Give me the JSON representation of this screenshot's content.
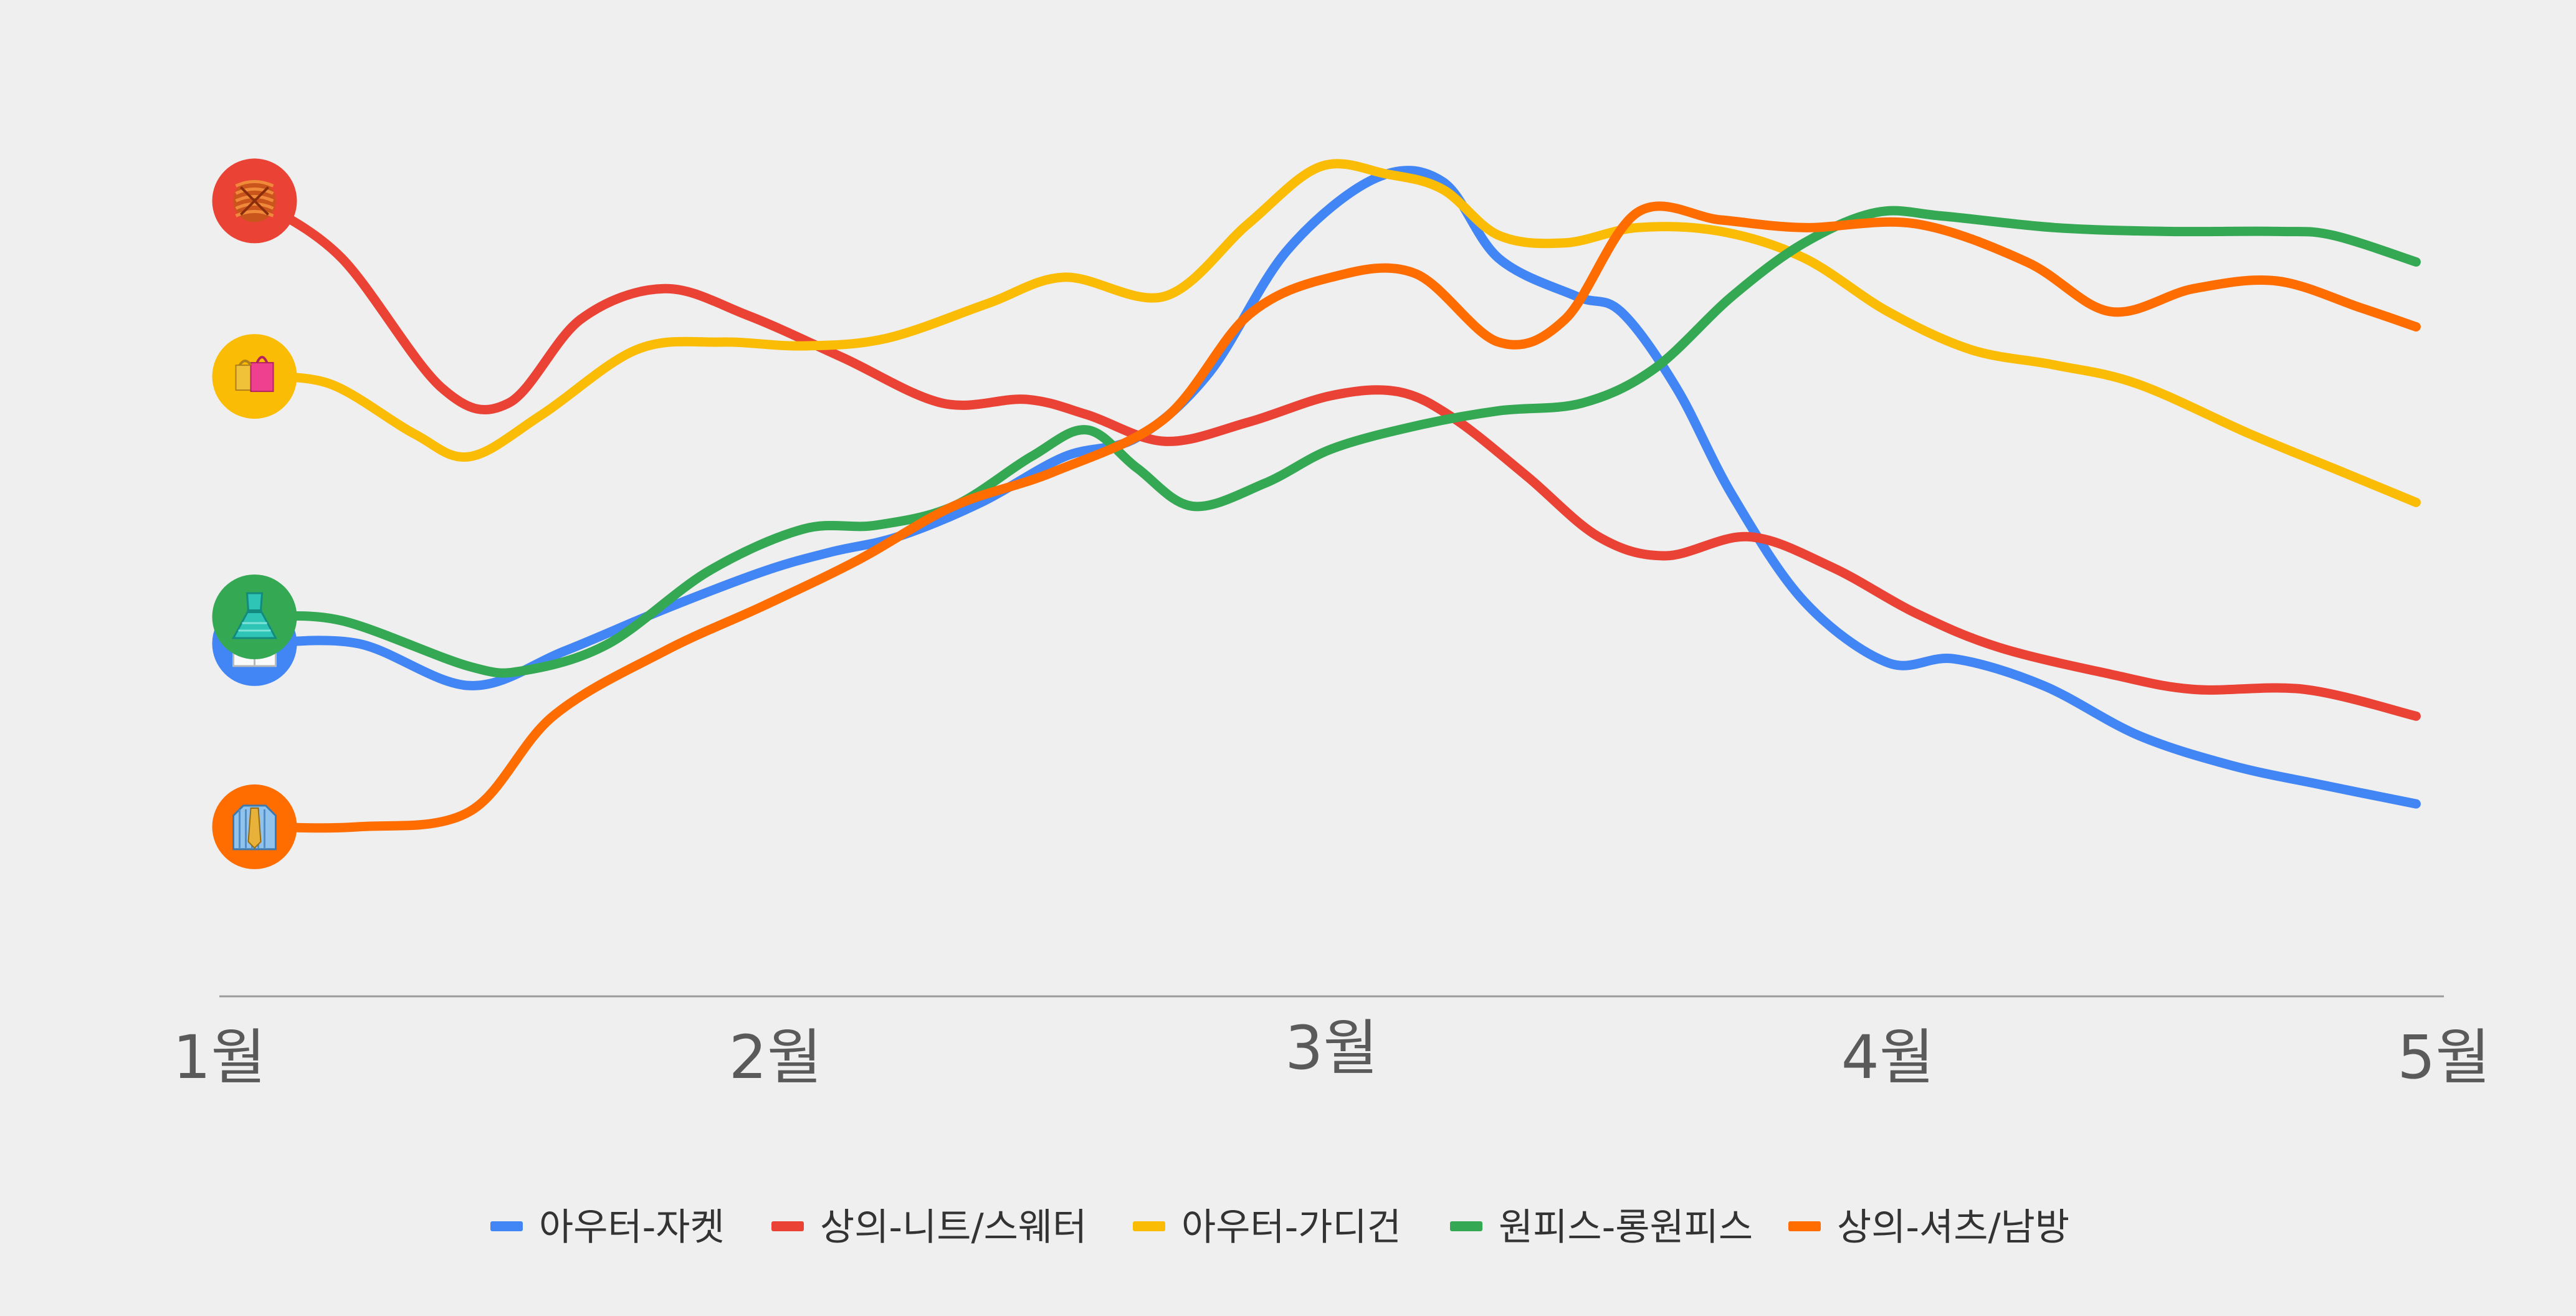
{
  "chart_data": {
    "type": "line",
    "title": "",
    "xlabel": "",
    "ylabel": "",
    "categories": [
      "1월",
      "2월",
      "3월",
      "4월",
      "5월"
    ],
    "grid": false,
    "y_axis_visible": false,
    "legend_position": "bottom-center",
    "ylim": [
      0,
      100
    ],
    "x_ticks": [
      0,
      1,
      2,
      3,
      4
    ],
    "series": [
      {
        "name": "아우터-자켓",
        "color": "#4285F4",
        "icon": "lab-coat-icon",
        "x": [
          0.07,
          0.25,
          0.45,
          0.62,
          0.8,
          0.98,
          1.1,
          1.22,
          1.37,
          1.52,
          1.65,
          1.78,
          1.92,
          2.08,
          2.2,
          2.3,
          2.44,
          2.52,
          2.62,
          2.72,
          2.85,
          3.0,
          3.12,
          3.28,
          3.45,
          3.62,
          3.78,
          3.95
        ],
        "values": [
          36.5,
          36.5,
          31.0,
          35.5,
          41.0,
          46.0,
          48.5,
          50.5,
          55.0,
          61.0,
          63.5,
          72.0,
          88.0,
          97.5,
          97.0,
          87.0,
          82.0,
          80.0,
          70.0,
          56.0,
          42.0,
          34.0,
          34.5,
          31.0,
          24.5,
          20.5,
          18.0,
          15.5
        ]
      },
      {
        "name": "상의-니트/스웨터",
        "color": "#EA4335",
        "icon": "yarn-icon",
        "x": [
          0.07,
          0.22,
          0.4,
          0.52,
          0.65,
          0.8,
          0.95,
          1.12,
          1.3,
          1.45,
          1.56,
          1.7,
          1.85,
          2.0,
          2.12,
          2.22,
          2.35,
          2.48,
          2.6,
          2.75,
          2.9,
          3.05,
          3.2,
          3.4,
          3.55,
          3.75,
          3.95
        ],
        "values": [
          94.5,
          87.0,
          70.0,
          68.0,
          79.0,
          83.0,
          79.5,
          74.0,
          68.0,
          68.5,
          66.5,
          63.0,
          65.5,
          69.0,
          69.5,
          66.0,
          58.5,
          50.5,
          48.0,
          50.5,
          46.5,
          40.5,
          36.0,
          32.5,
          30.5,
          30.5,
          27.0
        ]
      },
      {
        "name": "아우터-가디건",
        "color": "#FBBC05",
        "icon": "shopping-bags-icon",
        "x": [
          0.07,
          0.2,
          0.35,
          0.45,
          0.58,
          0.75,
          0.9,
          1.05,
          1.2,
          1.38,
          1.52,
          1.7,
          1.85,
          1.98,
          2.1,
          2.2,
          2.3,
          2.42,
          2.55,
          2.7,
          2.85,
          3.0,
          3.15,
          3.3,
          3.45,
          3.65,
          3.8,
          3.95
        ],
        "values": [
          71.5,
          70.5,
          64.0,
          61.0,
          66.5,
          75.0,
          76.0,
          75.5,
          76.5,
          81.0,
          84.5,
          82.0,
          91.5,
          99.0,
          98.0,
          96.0,
          90.0,
          89.0,
          91.0,
          90.5,
          87.0,
          80.0,
          75.0,
          73.0,
          70.5,
          64.0,
          59.5,
          55.0
        ]
      },
      {
        "name": "원피스-롱원피스",
        "color": "#34A853",
        "icon": "dress-icon",
        "x": [
          0.07,
          0.22,
          0.45,
          0.55,
          0.7,
          0.88,
          1.05,
          1.18,
          1.32,
          1.46,
          1.56,
          1.65,
          1.75,
          1.88,
          2.0,
          2.15,
          2.3,
          2.45,
          2.58,
          2.72,
          2.85,
          2.98,
          3.1,
          3.3,
          3.5,
          3.7,
          3.8,
          3.95
        ],
        "values": [
          40.0,
          39.5,
          33.5,
          33.0,
          36.5,
          46.0,
          51.5,
          52.0,
          54.5,
          61.0,
          64.5,
          59.5,
          54.5,
          57.5,
          62.0,
          65.0,
          67.0,
          68.0,
          72.5,
          82.0,
          89.0,
          93.0,
          92.5,
          91.0,
          90.5,
          90.5,
          90.0,
          86.5
        ]
      },
      {
        "name": "상의-셔츠/남방",
        "color": "#FF6D01",
        "icon": "shirt-tie-icon",
        "x": [
          0.07,
          0.25,
          0.45,
          0.6,
          0.8,
          0.98,
          1.15,
          1.32,
          1.5,
          1.7,
          1.85,
          2.0,
          2.15,
          2.3,
          2.42,
          2.55,
          2.7,
          2.85,
          3.05,
          3.25,
          3.4,
          3.55,
          3.7,
          3.85,
          3.95
        ],
        "values": [
          12.5,
          12.5,
          14.5,
          27.0,
          35.5,
          41.5,
          47.5,
          54.5,
          59.0,
          66.0,
          79.5,
          84.5,
          85.0,
          76.0,
          79.0,
          93.0,
          92.0,
          91.0,
          91.5,
          86.5,
          80.0,
          83.0,
          84.0,
          80.5,
          78.0
        ]
      }
    ]
  }
}
